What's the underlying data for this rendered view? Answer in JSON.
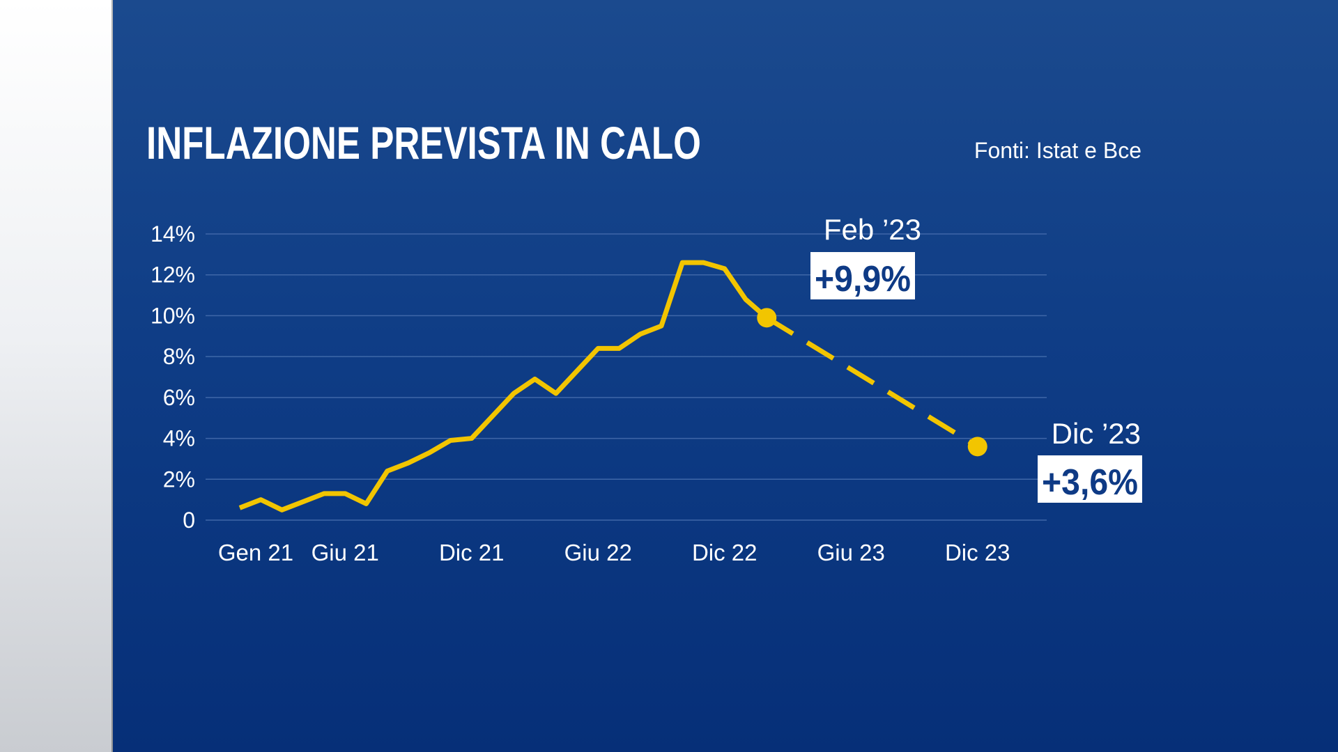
{
  "chart_data": {
    "type": "line",
    "title": "INFLAZIONE PREVISTA IN CALO",
    "source": "Fonti: Istat e Bce",
    "y_ticks": [
      "14%",
      "12%",
      "10%",
      "8%",
      "6%",
      "4%",
      "2%",
      "0"
    ],
    "ylim": [
      0,
      14
    ],
    "x_ticks": [
      "Gen 21",
      "Giu 21",
      "Dic 21",
      "Giu 22",
      "Dic 22",
      "Giu 23",
      "Dic 23"
    ],
    "x_tick_positions": [
      0,
      5,
      11,
      17,
      23,
      29,
      35
    ],
    "grid": true,
    "colors": {
      "line": "#f2c500",
      "grid": "#3f67a8",
      "callout_box": "#ffffff",
      "callout_text": "#0e3a85"
    },
    "series": [
      {
        "style": "solid",
        "x": [
          0,
          1,
          2,
          3,
          4,
          5,
          6,
          7,
          8,
          9,
          10,
          11,
          12,
          13,
          14,
          15,
          16,
          17,
          18,
          19,
          20,
          21,
          22,
          23,
          24,
          25
        ],
        "values": [
          0.6,
          1.0,
          0.5,
          0.9,
          1.3,
          1.3,
          0.8,
          2.4,
          2.8,
          3.3,
          3.9,
          4.0,
          5.1,
          6.2,
          6.9,
          6.2,
          7.3,
          8.4,
          8.4,
          9.1,
          9.5,
          12.6,
          12.6,
          12.3,
          10.8,
          9.9
        ]
      },
      {
        "style": "dashed",
        "x": [
          25,
          35
        ],
        "values": [
          9.9,
          3.6
        ]
      }
    ],
    "annotations": [
      {
        "label": "Feb ’23",
        "value": "+9,9%",
        "x": 25,
        "y": 9.9
      },
      {
        "label": "Dic ’23",
        "value": "+3,6%",
        "x": 35,
        "y": 3.6
      }
    ]
  }
}
